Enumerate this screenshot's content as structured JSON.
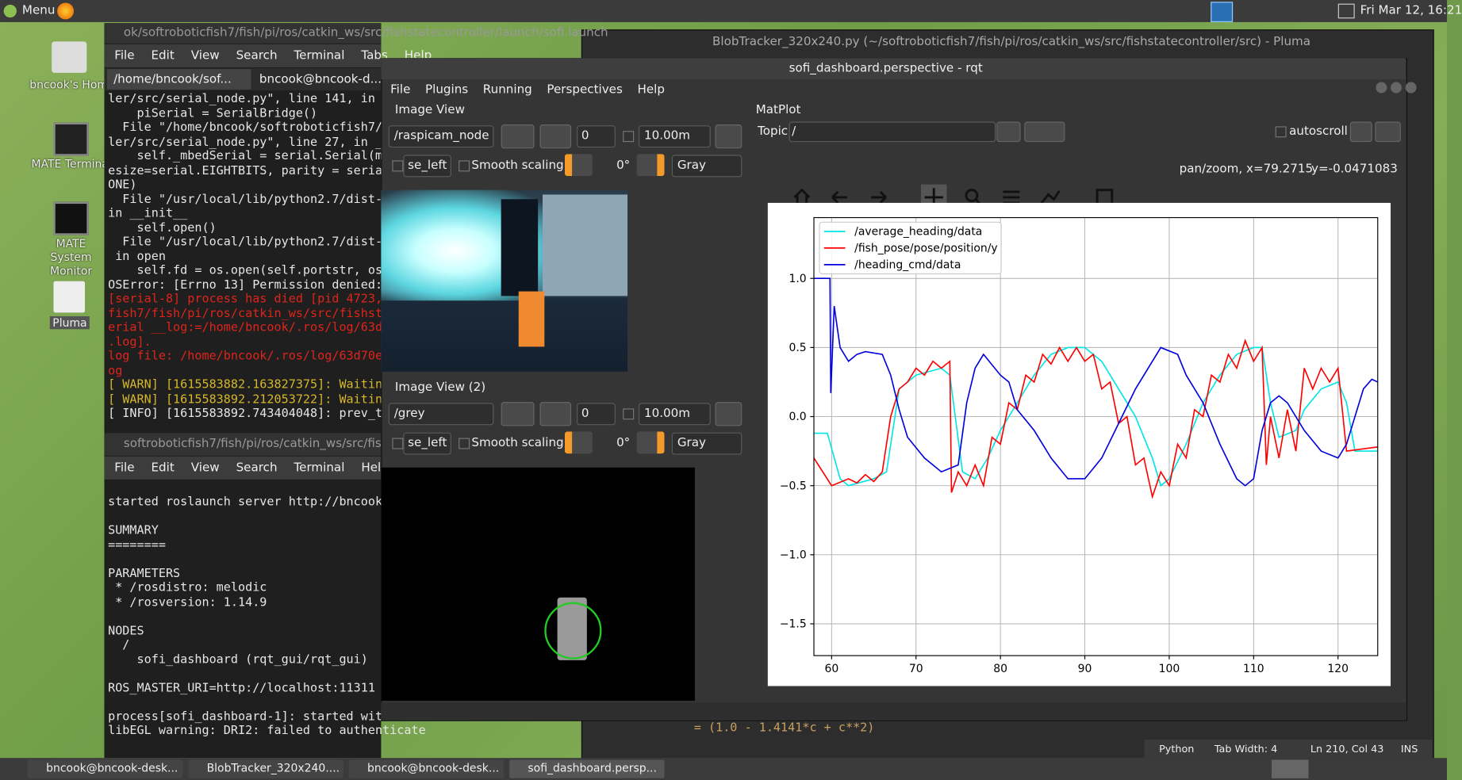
{
  "top_panel": {
    "menu": "Menu",
    "clock": "Fri Mar 12, 16:21"
  },
  "desktop_icons": [
    "bncook's Home",
    "MATE Terminal",
    "MATE System Monitor",
    "Pluma"
  ],
  "terminal_1": {
    "title": "ok/softroboticfish7/fish/pi/ros/catkin_ws/src/fishstatecontroller/launch/sofi.launch",
    "menu": [
      "File",
      "Edit",
      "View",
      "Search",
      "Terminal",
      "Tabs",
      "Help"
    ],
    "tabs": [
      "/home/bncook/sof...",
      "bncook@bncook-d..."
    ],
    "blocks": [
      {
        "color": "#e6e6e6",
        "lines": [
          "ler/src/serial_node.py\", line 141, in",
          "    piSerial = SerialBridge()",
          "  File \"/home/bncook/softroboticfish7/",
          "ler/src/serial_node.py\", line 27, in _",
          "    self._mbedSerial = serial.Serial(m",
          "esize=serial.EIGHTBITS, parity = seria",
          "ONE)",
          "  File \"/usr/local/lib/python2.7/dist-",
          "in __init__",
          "    self.open()",
          "  File \"/usr/local/lib/python2.7/dist-",
          " in open",
          "    self.fd = os.open(self.portstr, os",
          "OSError: [Errno 13] Permission denied:"
        ]
      },
      {
        "color": "#e0241b",
        "lines": [
          "[serial-8] process has died [pid 4723,",
          "fish7/fish/pi/ros/catkin_ws/src/fishst",
          "erial __log:=/home/bncook/.ros/log/63d",
          ".log].",
          "log file: /home/bncook/.ros/log/63d70e",
          "og"
        ]
      },
      {
        "color": "#d6b72a",
        "lines": [
          "[ WARN] [1615583882.163827375]: Waitin",
          "[ WARN] [1615583892.212053722]: Waitin"
        ]
      },
      {
        "color": "#e6e6e6",
        "lines": [
          "[ INFO] [1615583892.743404048]: prev_t"
        ]
      }
    ]
  },
  "terminal_2": {
    "title": "softroboticfish7/fish/pi/ros/catkin_ws/src/fish",
    "menu": [
      "File",
      "Edit",
      "View",
      "Search",
      "Terminal",
      "Help"
    ],
    "blocks": [
      [
        "started roslaunch server http://bncook"
      ],
      [
        "SUMMARY",
        "========"
      ],
      [
        "PARAMETERS",
        " * /rosdistro: melodic",
        " * /rosversion: 1.14.9"
      ],
      [
        "NODES",
        "  /",
        "    sofi_dashboard (rqt_gui/rqt_gui)"
      ],
      [
        "ROS_MASTER_URI=http://localhost:11311"
      ],
      [
        "process[sofi_dashboard-1]: started wit",
        "libEGL warning: DRI2: failed to authenticate"
      ]
    ]
  },
  "pluma": {
    "title": "BlobTracker_320x240.py (~/softroboticfish7/fish/pi/ros/catkin_ws/src/fishstatecontroller/src) - Pluma",
    "code_line": "= (1.0 - 1.4141*c + c**2)",
    "status": [
      "Python",
      "Tab Width: 4",
      "Ln 210, Col 43",
      "INS"
    ]
  },
  "rqt": {
    "title": "sofi_dashboard.perspective - rqt",
    "menu": [
      "File",
      "Plugins",
      "Running",
      "Perspectives",
      "Help"
    ],
    "image_views": [
      {
        "title": "Image View",
        "topic": "/raspicam_node",
        "spin": "0",
        "size": "10.00m",
        "mirror": "se_left",
        "smooth": "Smooth scaling",
        "rotation": "0°",
        "colormap": "Gray"
      },
      {
        "title": "Image View (2)",
        "topic": "/grey",
        "spin": "0",
        "size": "10.00m",
        "mirror": "se_left",
        "smooth": "Smooth scaling",
        "rotation": "0°",
        "colormap": "Gray"
      }
    ],
    "matplot": {
      "title": "MatPlot",
      "topic_label": "Topic",
      "topic_value": "/",
      "autoscroll": "autoscroll",
      "status_x": "pan/zoom, x=79.2715",
      "status_y": "y=-0.0471083"
    }
  },
  "chart_data": {
    "type": "line",
    "xlim": [
      57.9,
      124.7
    ],
    "ylim": [
      -1.73,
      1.44
    ],
    "xticks": [
      60,
      70,
      80,
      90,
      100,
      110,
      120
    ],
    "yticks": [
      {
        "value": -1.5,
        "label": "−1.5"
      },
      {
        "value": -1.0,
        "label": "−1.0"
      },
      {
        "value": -0.5,
        "label": "−0.5"
      },
      {
        "value": 0,
        "label": "0.0"
      },
      0.5,
      {
        "value": 1,
        "label": "1.0"
      }
    ],
    "grid": true,
    "legend": "upper left",
    "series": [
      {
        "name": "/average_heading/data",
        "color": "#00e5e5",
        "x": [
          57.9,
          59.5,
          61,
          62,
          65,
          66.5,
          68,
          70,
          73,
          74,
          75.5,
          77,
          78.5,
          80,
          82,
          84,
          86,
          88,
          90,
          92,
          94,
          96,
          98,
          99,
          100,
          102,
          104,
          106,
          108,
          110,
          111,
          112,
          113,
          115,
          116,
          118,
          120,
          121,
          122,
          124.7
        ],
        "values": [
          -0.12,
          -0.12,
          -0.45,
          -0.5,
          -0.45,
          -0.4,
          0.2,
          0.3,
          0.35,
          0.3,
          -0.4,
          -0.45,
          -0.3,
          -0.1,
          0.1,
          0.3,
          0.45,
          0.5,
          0.5,
          0.4,
          0.2,
          0,
          -0.3,
          -0.5,
          -0.45,
          -0.2,
          0.1,
          0.3,
          0.45,
          0.5,
          0.5,
          0.1,
          -0.15,
          -0.1,
          0.05,
          0.2,
          0.25,
          0.1,
          -0.25,
          -0.25
        ]
      },
      {
        "name": "/fish_pose/pose/position/y",
        "color": "#ff0000",
        "x": [
          57.9,
          60,
          62,
          63,
          64,
          65,
          66,
          67,
          68,
          69,
          70,
          71,
          72,
          73,
          74,
          74.2,
          75,
          76,
          77,
          78,
          79,
          80,
          81,
          82,
          83,
          84,
          85,
          86,
          87,
          88,
          89,
          90,
          91,
          92,
          93,
          94,
          95,
          96,
          97,
          98,
          99,
          100,
          101,
          102,
          103,
          104,
          105,
          106,
          107,
          108,
          109,
          110,
          111,
          111.5,
          112,
          113,
          114,
          115,
          116,
          117,
          118,
          119,
          120,
          121,
          124.7
        ],
        "values": [
          -0.3,
          -0.5,
          -0.45,
          -0.48,
          -0.42,
          -0.47,
          -0.4,
          0,
          0.2,
          0.25,
          0.35,
          0.3,
          0.4,
          0.35,
          0.4,
          -0.55,
          -0.4,
          -0.5,
          -0.35,
          -0.5,
          -0.15,
          -0.2,
          0.1,
          0.05,
          0.3,
          0.25,
          0.45,
          0.38,
          0.5,
          0.4,
          0.5,
          0.4,
          0.45,
          0.2,
          0.25,
          -0.05,
          0,
          -0.35,
          -0.3,
          -0.58,
          -0.4,
          -0.5,
          -0.2,
          -0.3,
          0.05,
          0,
          0.3,
          0.25,
          0.45,
          0.35,
          0.55,
          0.4,
          0.5,
          -0.35,
          0,
          -0.3,
          0.05,
          -0.25,
          0.35,
          0.2,
          0.35,
          0.25,
          0.35,
          -0.25,
          -0.22
        ]
      },
      {
        "name": "/heading_cmd/data",
        "color": "#0000dd",
        "x": [
          57.9,
          59.8,
          59.9,
          60.3,
          61,
          62,
          63,
          64,
          66,
          67,
          68,
          69,
          71,
          73,
          75,
          76,
          77,
          78,
          80,
          81,
          82,
          84,
          86,
          88,
          90,
          92,
          94,
          96,
          98,
          99,
          101,
          102,
          104,
          106,
          108,
          109,
          110,
          111,
          112,
          113,
          114,
          116,
          118,
          120,
          121,
          123,
          124,
          124.7
        ],
        "values": [
          1.0,
          1.0,
          0.17,
          0.8,
          0.5,
          0.4,
          0.45,
          0.47,
          0.45,
          0.3,
          0.05,
          -0.15,
          -0.3,
          -0.4,
          -0.35,
          0.1,
          0.35,
          0.45,
          0.3,
          0.25,
          0.05,
          -0.1,
          -0.3,
          -0.45,
          -0.45,
          -0.3,
          -0.05,
          0.2,
          0.4,
          0.5,
          0.45,
          0.3,
          0.1,
          -0.2,
          -0.45,
          -0.5,
          -0.45,
          -0.1,
          0.1,
          0.15,
          0.1,
          -0.1,
          -0.25,
          -0.3,
          -0.2,
          0.2,
          0.27,
          0.25
        ]
      }
    ]
  },
  "taskbar": [
    "bncook@bncook-desk...",
    "BlobTracker_320x240....",
    "bncook@bncook-desk...",
    "sofi_dashboard.persp..."
  ]
}
